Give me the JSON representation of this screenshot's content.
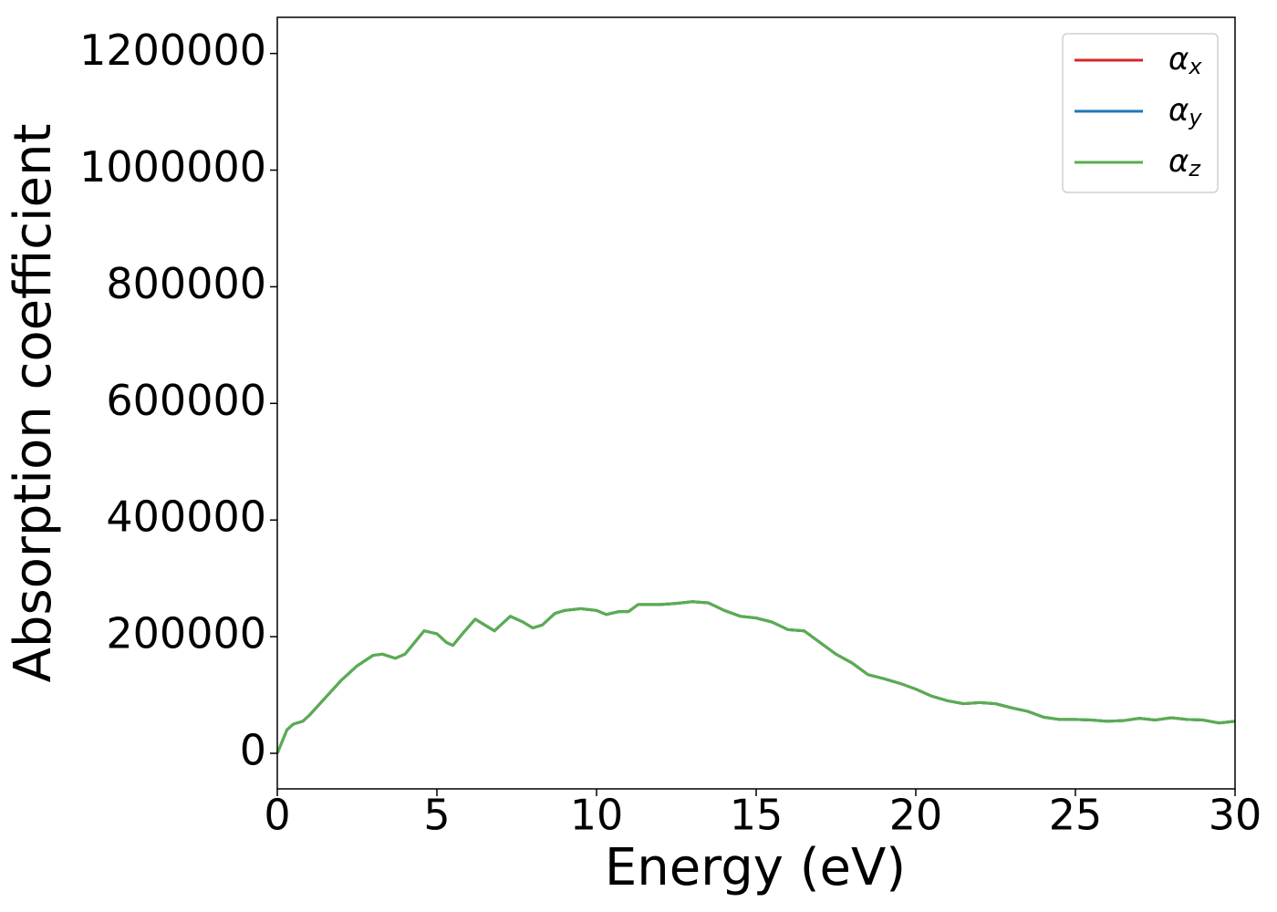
{
  "chart_data": {
    "type": "line",
    "xlabel": "Energy (eV)",
    "ylabel": "Absorption coefficient",
    "x": [
      0,
      0.3,
      0.5,
      0.8,
      1,
      1.5,
      2,
      2.5,
      3,
      3.3,
      3.7,
      4,
      4.3,
      4.6,
      5,
      5.3,
      5.5,
      5.8,
      6.2,
      6.5,
      6.8,
      7,
      7.3,
      7.7,
      8,
      8.3,
      8.7,
      9,
      9.5,
      10,
      10.3,
      10.7,
      11,
      11.3,
      12,
      12.5,
      13,
      13.5,
      14,
      14.5,
      15,
      15.5,
      16,
      16.5,
      17,
      17.5,
      18,
      18.5,
      19,
      19.5,
      20,
      20.5,
      21,
      21.5,
      22,
      22.5,
      23,
      23.5,
      24,
      24.5,
      25,
      25.5,
      26,
      26.5,
      27,
      27.5,
      28,
      28.5,
      29,
      29.5,
      30
    ],
    "series": [
      {
        "name": "αx",
        "color": "#d62728",
        "values": [
          0,
          40000,
          50000,
          55000,
          65000,
          95000,
          125000,
          150000,
          168000,
          170000,
          163000,
          170000,
          190000,
          210000,
          205000,
          190000,
          185000,
          205000,
          230000,
          220000,
          210000,
          220000,
          235000,
          225000,
          215000,
          220000,
          240000,
          245000,
          248000,
          245000,
          238000,
          243000,
          243000,
          255000,
          255000,
          257000,
          260000,
          258000,
          245000,
          235000,
          232000,
          225000,
          212000,
          210000,
          190000,
          170000,
          155000,
          135000,
          128000,
          120000,
          110000,
          98000,
          90000,
          85000,
          87000,
          85000,
          78000,
          72000,
          62000,
          58000,
          58000,
          57000,
          55000,
          56000,
          60000,
          57000,
          61000,
          58000,
          57000,
          52000,
          55000
        ]
      },
      {
        "name": "αy",
        "color": "#1f77b4",
        "values": [
          0,
          40000,
          50000,
          55000,
          65000,
          95000,
          125000,
          150000,
          168000,
          170000,
          163000,
          170000,
          190000,
          210000,
          205000,
          190000,
          185000,
          205000,
          230000,
          220000,
          210000,
          220000,
          235000,
          225000,
          215000,
          220000,
          240000,
          245000,
          248000,
          245000,
          238000,
          243000,
          243000,
          255000,
          255000,
          257000,
          260000,
          258000,
          245000,
          235000,
          232000,
          225000,
          212000,
          210000,
          190000,
          170000,
          155000,
          135000,
          128000,
          120000,
          110000,
          98000,
          90000,
          85000,
          87000,
          85000,
          78000,
          72000,
          62000,
          58000,
          58000,
          57000,
          55000,
          56000,
          60000,
          57000,
          61000,
          58000,
          57000,
          52000,
          55000
        ]
      },
      {
        "name": "αz",
        "color": "#58ae4f",
        "values": [
          0,
          40000,
          50000,
          55000,
          65000,
          95000,
          125000,
          150000,
          168000,
          170000,
          163000,
          170000,
          190000,
          210000,
          205000,
          190000,
          185000,
          205000,
          230000,
          220000,
          210000,
          220000,
          235000,
          225000,
          215000,
          220000,
          240000,
          245000,
          248000,
          245000,
          238000,
          243000,
          243000,
          255000,
          255000,
          257000,
          260000,
          258000,
          245000,
          235000,
          232000,
          225000,
          212000,
          210000,
          190000,
          170000,
          155000,
          135000,
          128000,
          120000,
          110000,
          98000,
          90000,
          85000,
          87000,
          85000,
          78000,
          72000,
          62000,
          58000,
          58000,
          57000,
          55000,
          56000,
          60000,
          57000,
          61000,
          58000,
          57000,
          52000,
          55000
        ]
      }
    ],
    "xlim": [
      0,
      30
    ],
    "xticks": [
      0,
      5,
      10,
      15,
      20,
      25,
      30
    ],
    "ylim": [
      -61000,
      1262000
    ],
    "yticks": [
      0,
      200000,
      400000,
      600000,
      800000,
      1000000,
      1200000
    ],
    "legend": "upper right",
    "grid": false
  }
}
